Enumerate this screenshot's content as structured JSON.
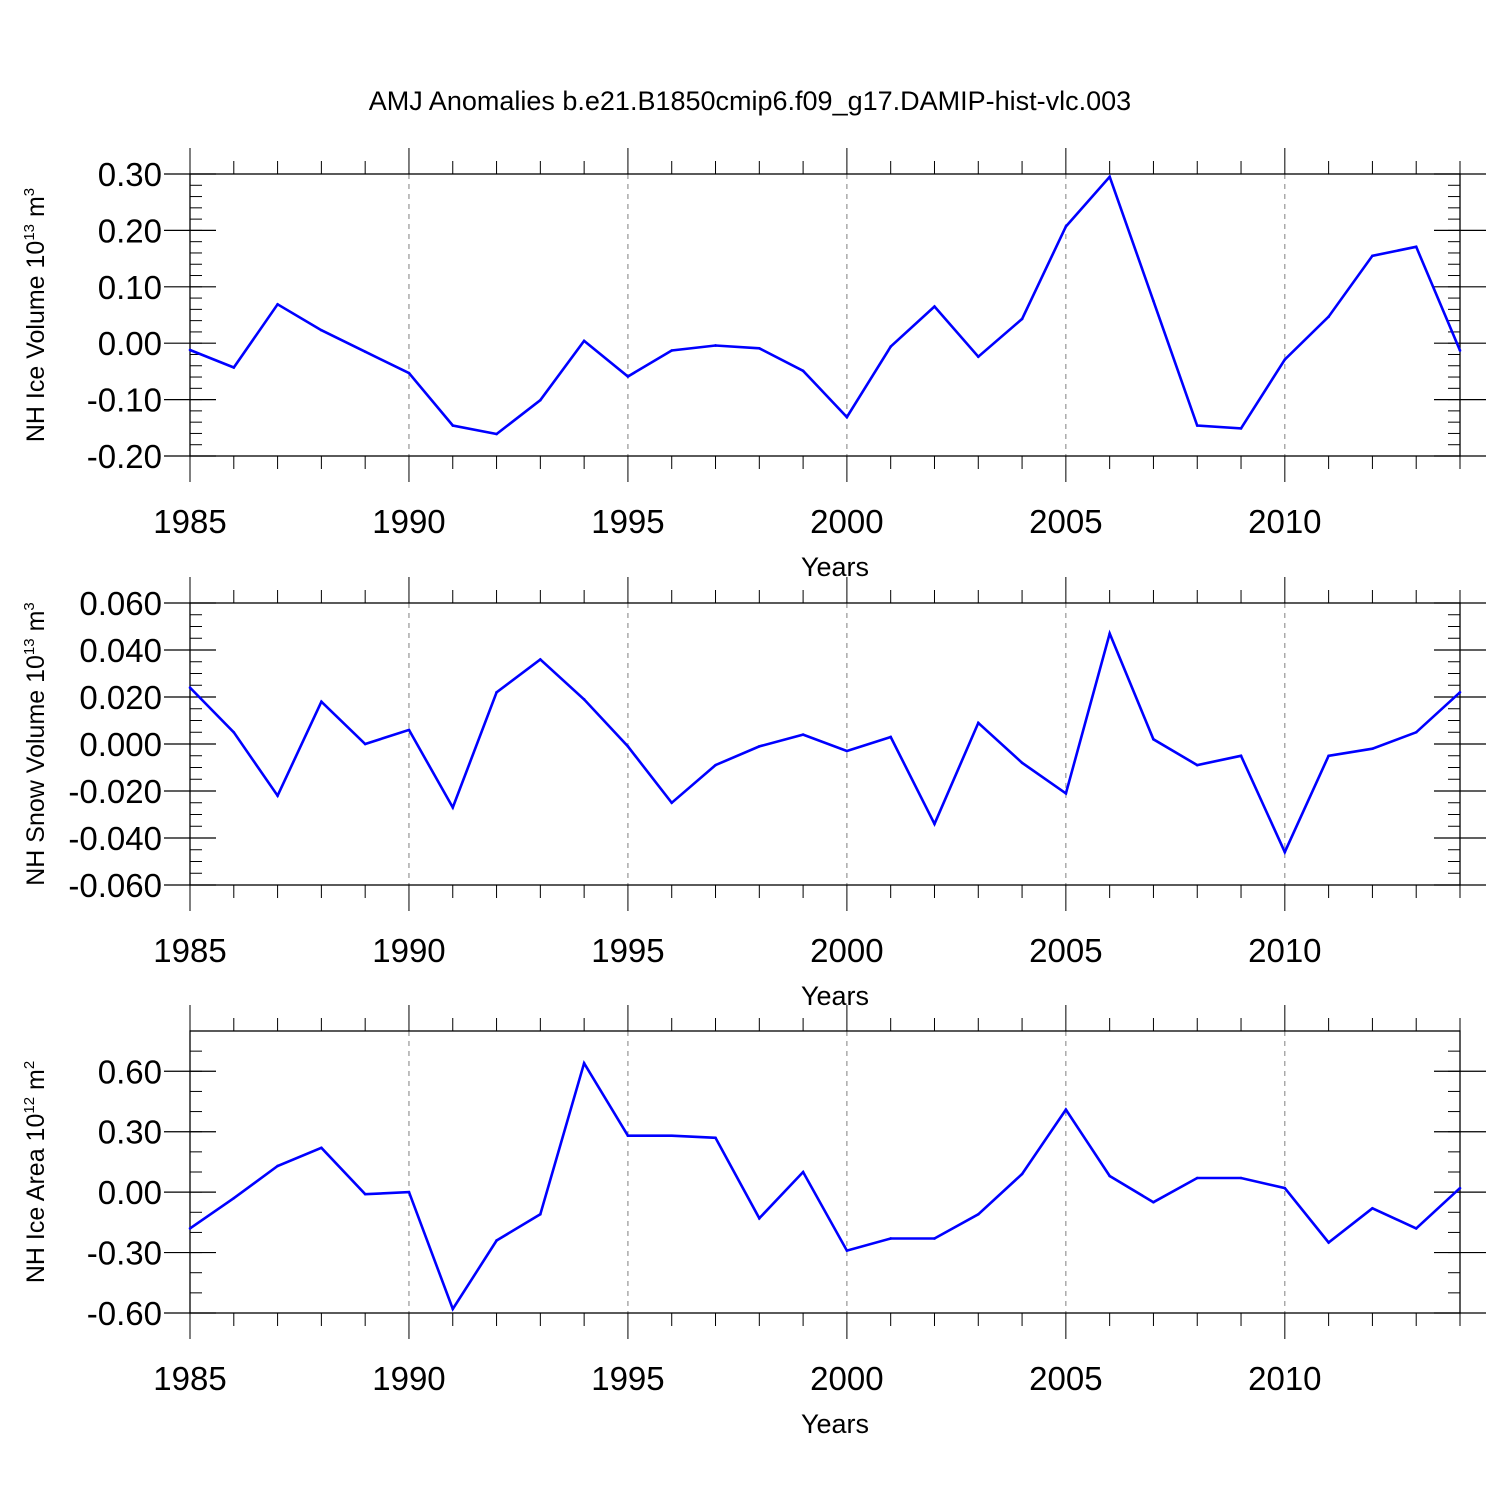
{
  "figure_title": "AMJ Anomalies b.e21.B1850cmip6.f09_g17.DAMIP-hist-vlc.003",
  "line_color": "#0000ff",
  "chart_data": [
    {
      "type": "line",
      "title": "AMJ Anomalies b.e21.B1850cmip6.f09_g17.DAMIP-hist-vlc.003",
      "xlabel": "Years",
      "ylabel": "NH Ice Volume 10",
      "ylabel_sup": "13",
      "ylabel_unit": " m",
      "ylabel_unit_sup": "3",
      "xlim": [
        1985,
        2014
      ],
      "ylim": [
        -0.2,
        0.3
      ],
      "yticks": [
        -0.2,
        -0.1,
        0.0,
        0.1,
        0.2,
        0.3
      ],
      "ytick_labels": [
        "-0.20",
        "-0.10",
        "0.00",
        "0.10",
        "0.20",
        "0.30"
      ],
      "yminor": 0.02,
      "xticks": [
        1985,
        1990,
        1995,
        2000,
        2005,
        2010
      ],
      "xtick_labels": [
        "1985",
        "1990",
        "1995",
        "2000",
        "2005",
        "2010"
      ],
      "x": [
        1985,
        1986,
        1987,
        1988,
        1989,
        1990,
        1991,
        1992,
        1993,
        1994,
        1995,
        1996,
        1997,
        1998,
        1999,
        2000,
        2001,
        2002,
        2003,
        2004,
        2005,
        2006,
        2007,
        2008,
        2009,
        2010,
        2011,
        2012,
        2013,
        2014
      ],
      "series": [
        {
          "name": "NH Ice Volume",
          "values": [
            -0.012,
            -0.043,
            0.069,
            0.023,
            -0.015,
            -0.053,
            -0.146,
            -0.161,
            -0.101,
            0.004,
            -0.059,
            -0.013,
            -0.004,
            -0.009,
            -0.049,
            -0.131,
            -0.006,
            0.065,
            -0.024,
            0.043,
            0.207,
            0.295,
            0.075,
            -0.146,
            -0.151,
            -0.029,
            0.047,
            0.155,
            0.171,
            -0.013
          ]
        }
      ]
    },
    {
      "type": "line",
      "title": "",
      "xlabel": "Years",
      "ylabel": "NH Snow Volume 10",
      "ylabel_sup": "13",
      "ylabel_unit": " m",
      "ylabel_unit_sup": "3",
      "xlim": [
        1985,
        2014
      ],
      "ylim": [
        -0.06,
        0.06
      ],
      "yticks": [
        -0.06,
        -0.04,
        -0.02,
        0.0,
        0.02,
        0.04,
        0.06
      ],
      "ytick_labels": [
        "-0.060",
        "-0.040",
        "-0.020",
        "0.000",
        "0.020",
        "0.040",
        "0.060"
      ],
      "yminor": 0.005,
      "xticks": [
        1985,
        1990,
        1995,
        2000,
        2005,
        2010
      ],
      "xtick_labels": [
        "1985",
        "1990",
        "1995",
        "2000",
        "2005",
        "2010"
      ],
      "x": [
        1985,
        1986,
        1987,
        1988,
        1989,
        1990,
        1991,
        1992,
        1993,
        1994,
        1995,
        1996,
        1997,
        1998,
        1999,
        2000,
        2001,
        2002,
        2003,
        2004,
        2005,
        2006,
        2007,
        2008,
        2009,
        2010,
        2011,
        2012,
        2013,
        2014
      ],
      "series": [
        {
          "name": "NH Snow Volume",
          "values": [
            0.024,
            0.005,
            -0.022,
            0.018,
            0.0,
            0.006,
            -0.027,
            0.022,
            0.036,
            0.019,
            -0.001,
            -0.025,
            -0.009,
            -0.001,
            0.004,
            -0.003,
            0.003,
            -0.034,
            0.009,
            -0.008,
            -0.021,
            0.047,
            0.002,
            -0.009,
            -0.005,
            -0.046,
            -0.005,
            -0.002,
            0.005,
            0.022
          ]
        }
      ]
    },
    {
      "type": "line",
      "title": "",
      "xlabel": "Years",
      "ylabel": "NH Ice Area 10",
      "ylabel_sup": "12",
      "ylabel_unit": " m",
      "ylabel_unit_sup": "2",
      "xlim": [
        1985,
        2014
      ],
      "ylim": [
        -0.6,
        0.8
      ],
      "yticks": [
        -0.6,
        -0.3,
        0.0,
        0.3,
        0.6
      ],
      "ytick_labels": [
        "-0.60",
        "-0.30",
        "0.00",
        "0.30",
        "0.60"
      ],
      "yminor": 0.1,
      "xticks": [
        1985,
        1990,
        1995,
        2000,
        2005,
        2010
      ],
      "xtick_labels": [
        "1985",
        "1990",
        "1995",
        "2000",
        "2005",
        "2010"
      ],
      "x": [
        1985,
        1986,
        1987,
        1988,
        1989,
        1990,
        1991,
        1992,
        1993,
        1994,
        1995,
        1996,
        1997,
        1998,
        1999,
        2000,
        2001,
        2002,
        2003,
        2004,
        2005,
        2006,
        2007,
        2008,
        2009,
        2010,
        2011,
        2012,
        2013,
        2014
      ],
      "series": [
        {
          "name": "NH Ice Area",
          "values": [
            -0.18,
            -0.03,
            0.13,
            0.22,
            -0.01,
            0.0,
            -0.58,
            -0.24,
            -0.11,
            0.64,
            0.28,
            0.28,
            0.27,
            -0.13,
            0.1,
            -0.29,
            -0.23,
            -0.23,
            -0.11,
            0.09,
            0.41,
            0.08,
            -0.05,
            0.07,
            0.07,
            0.02,
            -0.25,
            -0.08,
            -0.18,
            0.02
          ]
        }
      ]
    }
  ]
}
